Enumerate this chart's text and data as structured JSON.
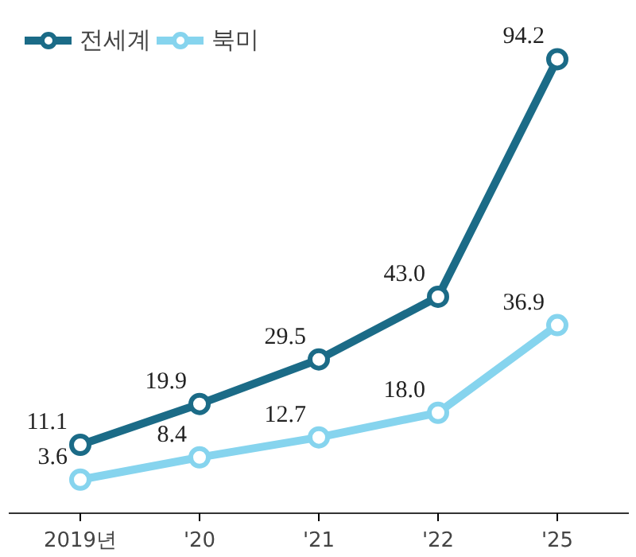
{
  "chart_data": {
    "type": "line",
    "categories": [
      "2019년",
      "'20",
      "'21",
      "'22",
      "'25"
    ],
    "series": [
      {
        "name": "전세계",
        "color": "#1b6b87",
        "values": [
          11.1,
          19.9,
          29.5,
          43.0,
          94.2
        ],
        "value_labels": [
          "11.1",
          "19.9",
          "29.5",
          "43.0",
          "94.2"
        ]
      },
      {
        "name": "북미",
        "color": "#86d4ee",
        "values": [
          3.6,
          8.4,
          12.7,
          18.0,
          36.9
        ],
        "value_labels": [
          "3.6",
          "8.4",
          "12.7",
          "18.0",
          "36.9"
        ]
      }
    ],
    "marker": "circle",
    "line_style": "solid",
    "legend": "top left",
    "grid": false
  }
}
